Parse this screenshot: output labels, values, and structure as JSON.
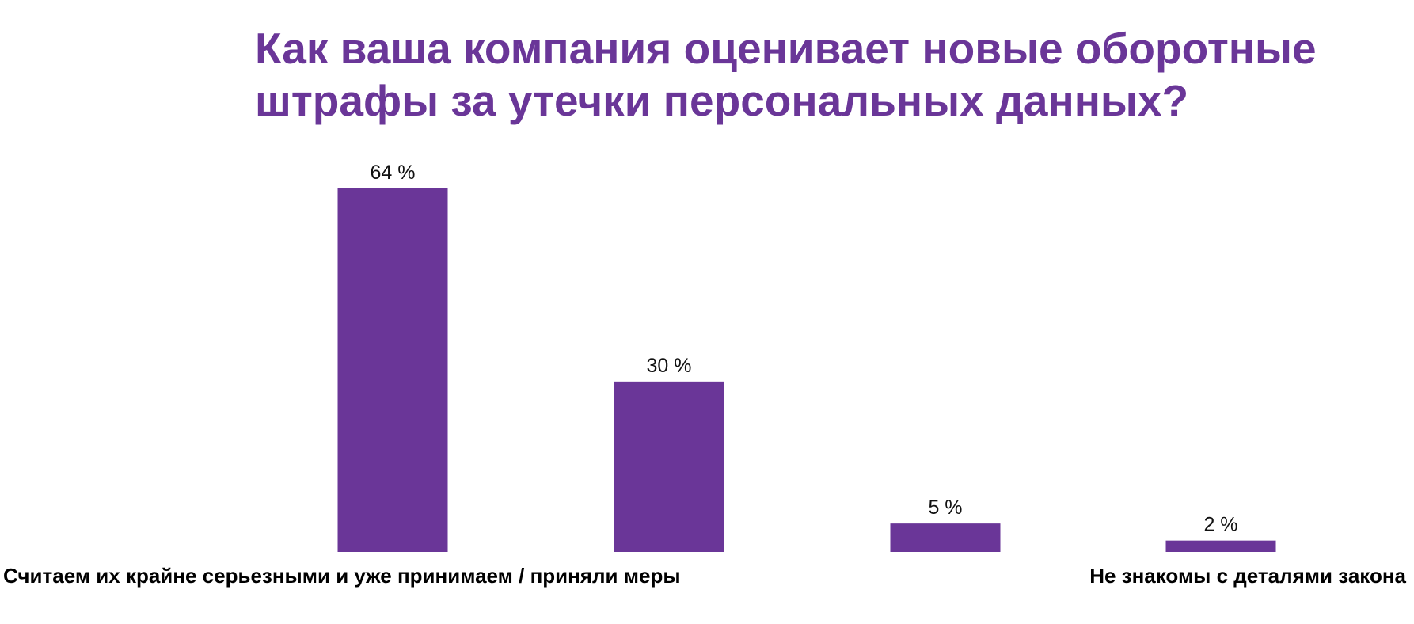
{
  "colors": {
    "accent": "#6a3698",
    "bar": "#6a3698",
    "text": "#000000"
  },
  "chart_data": {
    "type": "bar",
    "title": "Как ваша компания оценивает новые оборотные штрафы за утечки персональных данных?",
    "categories": [
      "Считаем их крайне серьезными и уже принимаем / приняли меры",
      "",
      "",
      "Не знакомы с деталями закона"
    ],
    "values": [
      64,
      30,
      5,
      2
    ],
    "data_labels": [
      "64 %",
      "30 %",
      "5 %",
      "2 %"
    ],
    "unit": "%",
    "ylim": [
      0,
      64
    ],
    "grid": false,
    "legend": "none"
  }
}
